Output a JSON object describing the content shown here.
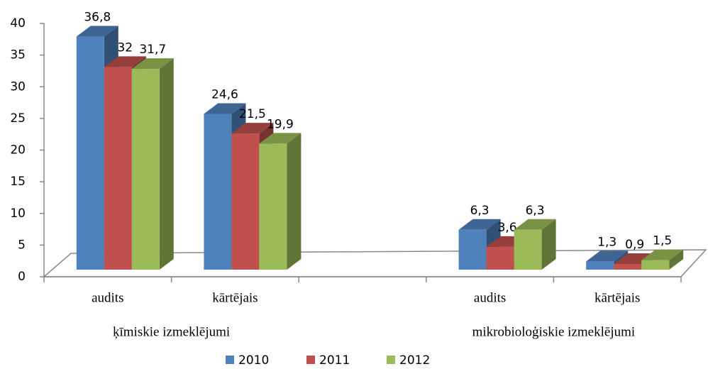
{
  "chart_data": {
    "type": "bar3d",
    "categories": [
      "audits",
      "kārtējais",
      null,
      "audits",
      "kārtējais"
    ],
    "groups": [
      "ķīmiskie izmeklējumi",
      "mikrobioloģiskie izmeklējumi"
    ],
    "series": [
      {
        "name": "2010",
        "color": "#4f81bd",
        "values": [
          36.8,
          24.6,
          null,
          6.3,
          1.3
        ],
        "value_labels": [
          "36,8",
          "24,6",
          null,
          "6,3",
          "1,3"
        ]
      },
      {
        "name": "2011",
        "color": "#c0504d",
        "values": [
          32,
          21.5,
          null,
          3.6,
          0.9
        ],
        "value_labels": [
          "32",
          "21,5",
          null,
          "3,6",
          "0,9"
        ]
      },
      {
        "name": "2012",
        "color": "#9bbb59",
        "values": [
          31.7,
          19.9,
          null,
          6.3,
          1.5
        ],
        "value_labels": [
          "31,7",
          "19,9",
          null,
          "6,3",
          "1,5"
        ]
      }
    ],
    "ylim": [
      0,
      40
    ],
    "yticks": [
      0,
      5,
      10,
      15,
      20,
      25,
      30,
      35,
      40
    ],
    "legend": "bottom"
  }
}
